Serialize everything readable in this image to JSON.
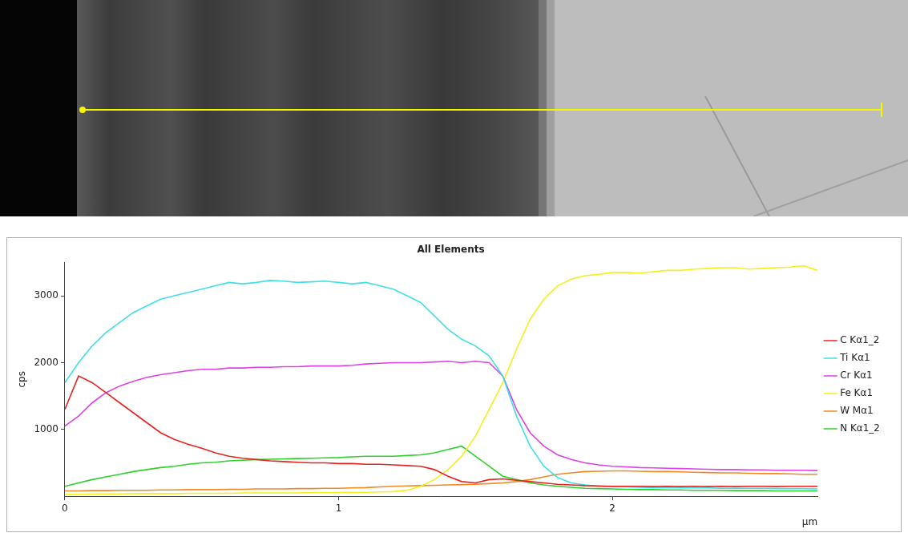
{
  "chart_data": {
    "type": "line",
    "title": "All Elements",
    "y_label": "cps",
    "x_label": "µm",
    "xlim": [
      0,
      2.75
    ],
    "xticks": [
      0,
      1,
      2
    ],
    "ylim": [
      0,
      3500
    ],
    "yticks": [
      1000,
      2000,
      3000
    ],
    "grid": false,
    "legend": "right",
    "x": [
      0,
      0.05,
      0.1,
      0.15,
      0.2,
      0.25,
      0.3,
      0.35,
      0.4,
      0.45,
      0.5,
      0.55,
      0.6,
      0.65,
      0.7,
      0.75,
      0.8,
      0.85,
      0.9,
      0.95,
      1.0,
      1.05,
      1.1,
      1.15,
      1.2,
      1.25,
      1.3,
      1.35,
      1.4,
      1.45,
      1.5,
      1.55,
      1.6,
      1.65,
      1.7,
      1.75,
      1.8,
      1.85,
      1.9,
      1.95,
      2.0,
      2.05,
      2.1,
      2.15,
      2.2,
      2.25,
      2.3,
      2.35,
      2.4,
      2.45,
      2.5,
      2.55,
      2.6,
      2.65,
      2.7,
      2.75
    ],
    "series": [
      {
        "name": "C Kα1_2",
        "color": "#e8231f",
        "values": [
          1300,
          1800,
          1700,
          1550,
          1400,
          1250,
          1100,
          950,
          850,
          780,
          720,
          650,
          600,
          570,
          550,
          530,
          520,
          510,
          500,
          500,
          490,
          490,
          480,
          480,
          470,
          460,
          450,
          400,
          300,
          220,
          200,
          250,
          260,
          240,
          220,
          200,
          180,
          170,
          160,
          155,
          150,
          150,
          150,
          145,
          150,
          145,
          150,
          145,
          150,
          145,
          150,
          150,
          145,
          150,
          150,
          150
        ]
      },
      {
        "name": "Ti Kα1",
        "color": "#3fe0e8",
        "values": [
          1700,
          2000,
          2250,
          2450,
          2600,
          2750,
          2850,
          2950,
          3000,
          3050,
          3100,
          3150,
          3200,
          3180,
          3200,
          3230,
          3220,
          3200,
          3210,
          3220,
          3200,
          3180,
          3200,
          3150,
          3100,
          3000,
          2900,
          2700,
          2500,
          2350,
          2250,
          2100,
          1800,
          1200,
          750,
          450,
          280,
          200,
          170,
          150,
          140,
          140,
          135,
          130,
          130,
          130,
          125,
          125,
          120,
          120,
          120,
          120,
          115,
          115,
          115,
          110
        ]
      },
      {
        "name": "Cr Kα1",
        "color": "#e040e8",
        "values": [
          1050,
          1200,
          1400,
          1550,
          1650,
          1720,
          1780,
          1820,
          1850,
          1880,
          1900,
          1900,
          1920,
          1920,
          1930,
          1930,
          1940,
          1940,
          1950,
          1950,
          1950,
          1960,
          1980,
          1990,
          2000,
          2000,
          2000,
          2010,
          2020,
          2000,
          2020,
          2000,
          1800,
          1300,
          950,
          750,
          620,
          550,
          500,
          470,
          450,
          440,
          430,
          425,
          420,
          415,
          410,
          405,
          400,
          400,
          395,
          395,
          390,
          390,
          390,
          385
        ]
      },
      {
        "name": "Fe Kα1",
        "color": "#f2f21a",
        "values": [
          30,
          30,
          35,
          35,
          35,
          40,
          40,
          40,
          40,
          45,
          45,
          45,
          45,
          50,
          50,
          50,
          50,
          50,
          55,
          55,
          55,
          60,
          60,
          65,
          70,
          90,
          150,
          250,
          400,
          600,
          900,
          1300,
          1700,
          2200,
          2650,
          2950,
          3150,
          3250,
          3300,
          3320,
          3350,
          3350,
          3340,
          3360,
          3380,
          3380,
          3400,
          3410,
          3420,
          3420,
          3400,
          3410,
          3420,
          3430,
          3450,
          3380
        ]
      },
      {
        "name": "W Mα1",
        "color": "#f08a24",
        "values": [
          80,
          80,
          85,
          85,
          90,
          90,
          90,
          95,
          95,
          100,
          100,
          100,
          105,
          105,
          110,
          110,
          110,
          115,
          115,
          120,
          120,
          125,
          130,
          140,
          150,
          155,
          160,
          165,
          170,
          175,
          180,
          190,
          200,
          220,
          250,
          290,
          330,
          350,
          370,
          375,
          380,
          380,
          375,
          370,
          370,
          365,
          360,
          355,
          350,
          350,
          345,
          340,
          340,
          335,
          330,
          330
        ]
      },
      {
        "name": "N Kα1_2",
        "color": "#2ed12e",
        "values": [
          150,
          200,
          250,
          290,
          330,
          370,
          400,
          430,
          450,
          480,
          500,
          510,
          530,
          540,
          550,
          555,
          560,
          565,
          570,
          575,
          580,
          590,
          600,
          600,
          600,
          610,
          620,
          650,
          700,
          750,
          600,
          450,
          300,
          250,
          200,
          170,
          150,
          135,
          120,
          115,
          110,
          105,
          100,
          100,
          95,
          95,
          90,
          90,
          90,
          85,
          85,
          85,
          80,
          80,
          80,
          80
        ]
      }
    ]
  }
}
